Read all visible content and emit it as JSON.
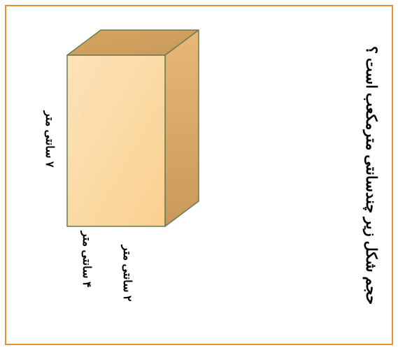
{
  "frame": {
    "border_color": "#e69128",
    "background_color": "#ffffff"
  },
  "title": {
    "text": "حجم شکل زیر چندسانتی مترمکعب است ؟",
    "color": "#000000"
  },
  "cuboid": {
    "type": "cuboid",
    "width_cm": 4,
    "height_cm": 7,
    "depth_cm": 2,
    "face_front_color": "#f9d08f",
    "face_top_color": "#d6a760",
    "face_side_color": "#e9b878",
    "stroke_color": "#6a7a52",
    "stroke_width": 1.5,
    "shading_dark": "#c8995a",
    "shading_light": "#fde3b9"
  },
  "labels": {
    "height": "۷ سانتی متر",
    "width": "۴ سانتی متر",
    "depth": "۲ سانتی متر",
    "color": "#000000"
  }
}
